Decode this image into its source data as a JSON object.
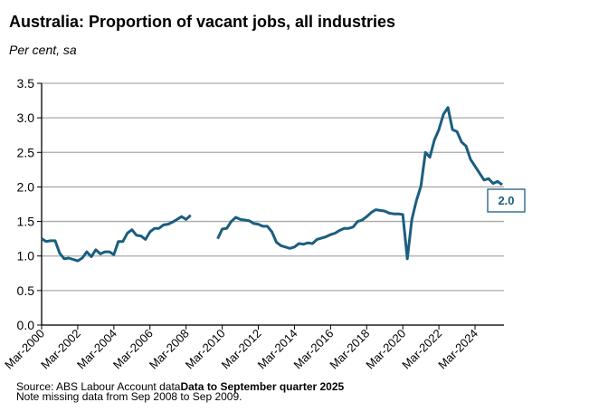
{
  "chart_data": {
    "type": "line",
    "title": "Australia: Proportion of vacant jobs, all industries",
    "subtitle": "Per cent, sa",
    "ylim": [
      0,
      3.5
    ],
    "yticks": [
      "0.0",
      "0.5",
      "1.0",
      "1.5",
      "2.0",
      "2.5",
      "3.0",
      "3.5"
    ],
    "xticks": [
      "Mar-2000",
      "Mar-2002",
      "Mar-2004",
      "Mar-2006",
      "Mar-2008",
      "Mar-2010",
      "Mar-2012",
      "Mar-2014",
      "Mar-2016",
      "Mar-2018",
      "Mar-2020",
      "Mar-2022",
      "Mar-2024"
    ],
    "x_start": "Mar-2000",
    "x_frequency": "quarterly",
    "grid": true,
    "line_color": "#1a5e80",
    "values": [
      1.25,
      1.21,
      1.22,
      1.22,
      1.04,
      0.96,
      0.97,
      0.95,
      0.93,
      0.97,
      1.06,
      0.99,
      1.09,
      1.03,
      1.06,
      1.06,
      1.02,
      1.21,
      1.21,
      1.33,
      1.38,
      1.3,
      1.29,
      1.24,
      1.35,
      1.4,
      1.4,
      1.45,
      1.46,
      1.49,
      1.53,
      1.57,
      1.53,
      1.59,
      null,
      null,
      null,
      null,
      null,
      1.25,
      1.39,
      1.4,
      1.5,
      1.56,
      1.53,
      1.52,
      1.51,
      1.47,
      1.46,
      1.43,
      1.43,
      1.35,
      1.2,
      1.15,
      1.13,
      1.11,
      1.13,
      1.18,
      1.17,
      1.19,
      1.18,
      1.24,
      1.26,
      1.28,
      1.31,
      1.33,
      1.37,
      1.4,
      1.4,
      1.42,
      1.5,
      1.52,
      1.57,
      1.63,
      1.67,
      1.66,
      1.65,
      1.62,
      1.61,
      1.61,
      1.6,
      0.96,
      1.53,
      1.8,
      2.01,
      2.5,
      2.43,
      2.68,
      2.83,
      3.05,
      3.15,
      2.83,
      2.8,
      2.65,
      2.59,
      2.4,
      2.3,
      2.2,
      2.1,
      2.12,
      2.05,
      2.08,
      2.03
    ],
    "annotation": "2.0"
  },
  "footer": {
    "source_prefix": "Source: ABS Labour Account data",
    "source_bold": "Data to September quarter 2025",
    "note": "Note missing data from Sep 2008 to Sep 2009."
  }
}
